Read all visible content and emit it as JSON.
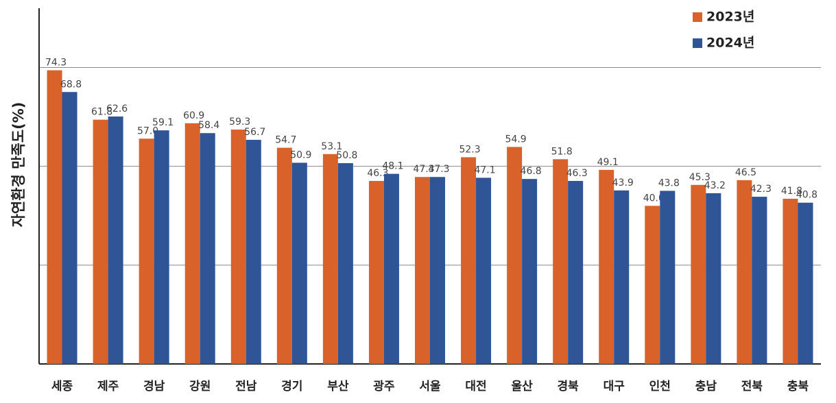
{
  "chart_data": {
    "type": "bar",
    "y_label": "자연환경 만족도(%)",
    "categories": [
      "세종",
      "제주",
      "경남",
      "강원",
      "전남",
      "경기",
      "부산",
      "광주",
      "서울",
      "대전",
      "울산",
      "경북",
      "대구",
      "인천",
      "충남",
      "전북",
      "충북"
    ],
    "series": [
      {
        "name": "2023년",
        "color": "#d9622b",
        "values": [
          74.3,
          61.8,
          57.0,
          60.9,
          59.3,
          54.7,
          53.1,
          46.3,
          47.3,
          52.3,
          54.9,
          51.8,
          49.1,
          40.0,
          45.3,
          46.5,
          41.8
        ],
        "value_labels": [
          "74.3",
          "61.8",
          "57.0",
          "60.9",
          "59.3",
          "54.7",
          "53.1",
          "46.3",
          "47.3",
          "52.3",
          "54.9",
          "51.8",
          "49.1",
          "40.0",
          "45.3",
          "46.5",
          "41.8"
        ]
      },
      {
        "name": "2024년",
        "color": "#2f5597",
        "values": [
          68.8,
          62.6,
          59.1,
          58.4,
          56.7,
          50.9,
          50.8,
          48.1,
          47.3,
          47.1,
          46.8,
          46.3,
          43.9,
          43.8,
          43.2,
          42.3,
          40.8
        ],
        "value_labels": [
          "68.8",
          "62.6",
          "59.1",
          "58.4",
          "56.7",
          "50.9",
          "50.8",
          "48.1",
          "47.3",
          "47.1",
          "46.8",
          "46.3",
          "43.9",
          "43.8",
          "43.2",
          "42.3",
          "40.8"
        ]
      }
    ],
    "ylim": [
      0,
      90
    ],
    "yticks": [
      25,
      50,
      75
    ],
    "grid": true,
    "legend": "upper right"
  }
}
